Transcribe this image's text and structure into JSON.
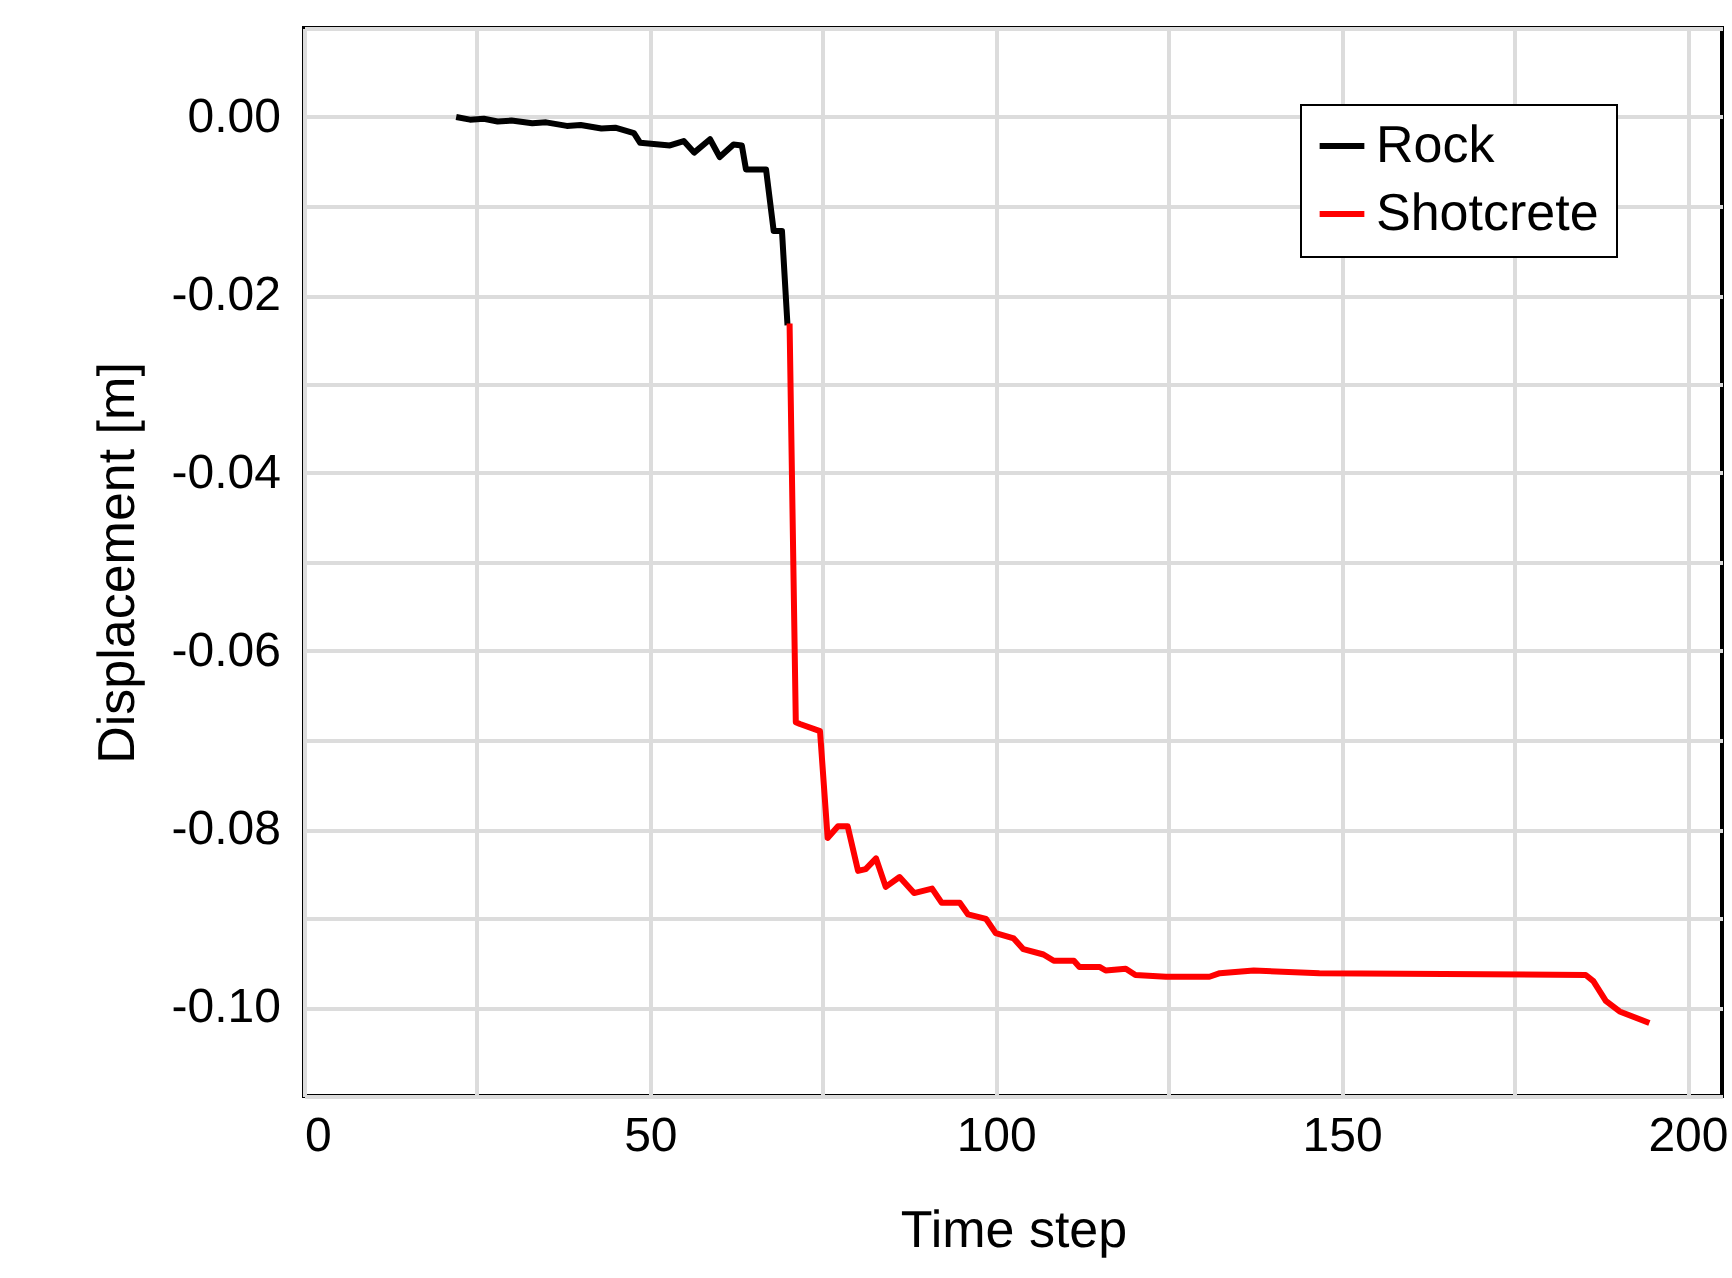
{
  "chart_data": {
    "type": "line",
    "xlabel": "Time step",
    "ylabel": "Displacement [m]",
    "xlim": [
      0,
      205
    ],
    "ylim": [
      -0.11,
      0.01
    ],
    "xticks": [
      0,
      {
        "value": 25,
        "label": null
      },
      50,
      {
        "value": 75,
        "label": null
      },
      100,
      {
        "value": 125,
        "label": null
      },
      150,
      {
        "value": 175,
        "label": null
      },
      200
    ],
    "yticks": [
      {
        "value": -0.11,
        "label": null
      },
      {
        "value": -0.1,
        "label": "-0.10"
      },
      {
        "value": -0.09,
        "label": null
      },
      {
        "value": -0.08,
        "label": "-0.08"
      },
      {
        "value": -0.07,
        "label": null
      },
      {
        "value": -0.06,
        "label": "-0.06"
      },
      {
        "value": -0.05,
        "label": null
      },
      {
        "value": -0.04,
        "label": "-0.04"
      },
      {
        "value": -0.03,
        "label": null
      },
      {
        "value": -0.02,
        "label": "-0.02"
      },
      {
        "value": -0.01,
        "label": null
      },
      {
        "value": 0,
        "label": "0.00"
      },
      {
        "value": 0.01,
        "label": null
      }
    ],
    "grid": true,
    "legend": "top right",
    "line_style": "solid",
    "marker": "none",
    "series": [
      {
        "name": "Rock",
        "color": "#000000",
        "x": [
          22,
          24,
          26,
          28,
          30,
          33,
          35,
          38,
          40,
          43,
          45,
          47.7,
          48.6,
          52.9,
          54.9,
          56.4,
          58.7,
          60.1,
          62.1,
          63.3,
          63.9,
          66.8,
          67.9,
          69.1,
          69.9
        ],
        "values": [
          0,
          -0.0003,
          -0.0002,
          -0.0005,
          -0.0004,
          -0.0007,
          -0.0006,
          -0.001,
          -0.0009,
          -0.0013,
          -0.0012,
          -0.0018,
          -0.0029,
          -0.0032,
          -0.0027,
          -0.004,
          -0.0025,
          -0.0045,
          -0.0031,
          -0.0032,
          -0.0059,
          -0.0059,
          -0.0128,
          -0.0128,
          -0.0234
        ]
      },
      {
        "name": "Shotcrete",
        "color": "#ff0000",
        "x": [
          70.2,
          71.1,
          71.7,
          74.6,
          75.7,
          77.2,
          78.6,
          80.1,
          81.2,
          82.7,
          84.1,
          86.1,
          88.2,
          90.8,
          92.2,
          94.8,
          96,
          98.6,
          100,
          102.6,
          104,
          106.9,
          108.4,
          111.3,
          112.1,
          115,
          115.9,
          118.8,
          120.2,
          124.6,
          130.9,
          132.4,
          137.3,
          146.8,
          185.3,
          186.4,
          188.2,
          190.2,
          194.5
        ],
        "values": [
          -0.0232,
          -0.068,
          -0.0682,
          -0.069,
          -0.081,
          -0.0797,
          -0.0797,
          -0.0847,
          -0.0845,
          -0.0833,
          -0.0865,
          -0.0854,
          -0.0872,
          -0.0867,
          -0.0883,
          -0.0883,
          -0.0896,
          -0.0901,
          -0.0917,
          -0.0923,
          -0.0935,
          -0.0941,
          -0.0948,
          -0.0948,
          -0.0955,
          -0.0955,
          -0.0959,
          -0.0957,
          -0.0964,
          -0.0966,
          -0.0966,
          -0.0962,
          -0.0959,
          -0.0962,
          -0.0964,
          -0.0971,
          -0.0993,
          -0.1005,
          -0.1018
        ]
      }
    ]
  }
}
